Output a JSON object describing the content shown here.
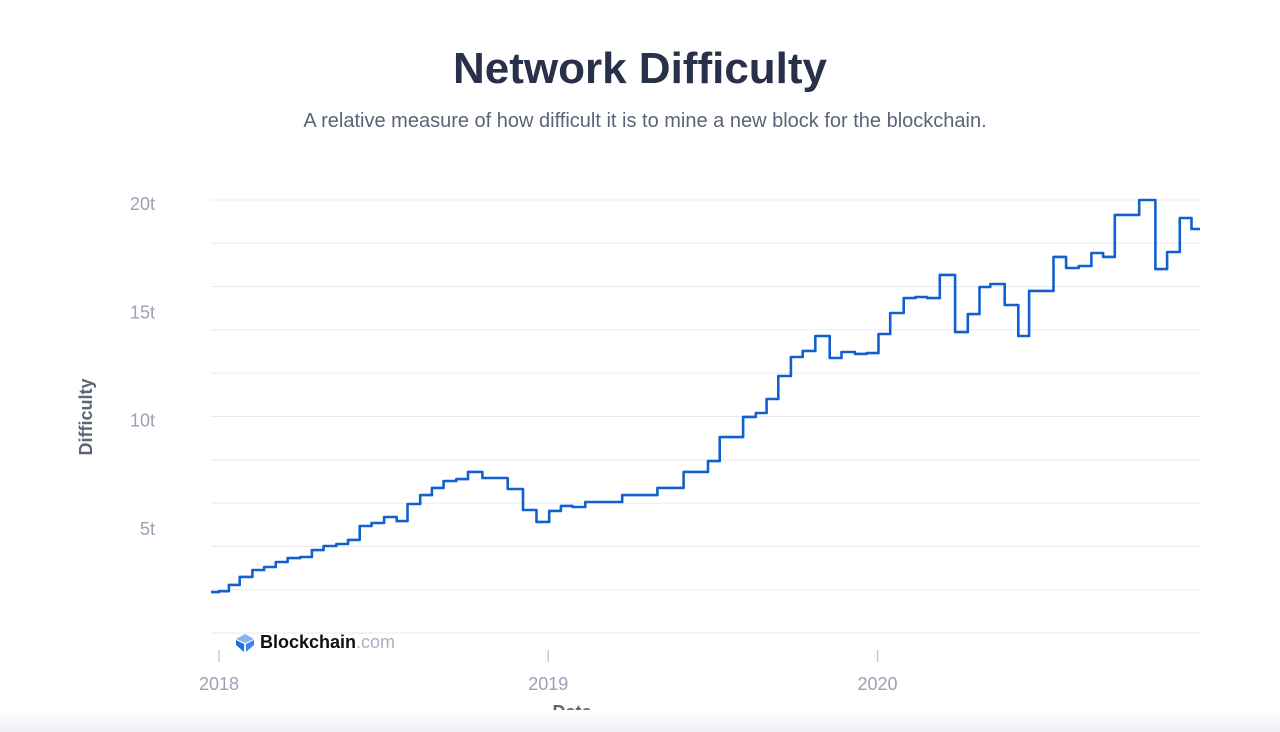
{
  "header": {
    "title": "Network Difficulty",
    "subtitle": "A relative measure of how difficult it is to mine a new block for the blockchain."
  },
  "branding": {
    "name": "Blockchain",
    "suffix": ".com",
    "icon": "blockchain-cube-icon"
  },
  "chart_data": {
    "type": "line",
    "step": true,
    "title": "Network Difficulty",
    "xlabel": "Date",
    "ylabel": "Difficulty",
    "ylim": [
      0,
      20
    ],
    "y_gridlines_every": 2,
    "grid": true,
    "y_ticks": [
      {
        "value": 5,
        "label": "5t"
      },
      {
        "value": 10,
        "label": "10t"
      },
      {
        "value": 15,
        "label": "15t"
      },
      {
        "value": 20,
        "label": "20t"
      }
    ],
    "x_ticks": [
      {
        "date": "2018-01-01",
        "label": "2018"
      },
      {
        "date": "2019-01-01",
        "label": "2019"
      },
      {
        "date": "2020-01-01",
        "label": "2020"
      }
    ],
    "unit": "t (trillion)",
    "line_color": "#1160d0",
    "x": [
      "2017-12-23",
      "2018-01-01",
      "2018-01-12",
      "2018-01-24",
      "2018-02-07",
      "2018-02-20",
      "2018-03-05",
      "2018-03-18",
      "2018-04-01",
      "2018-04-14",
      "2018-04-27",
      "2018-05-11",
      "2018-05-24",
      "2018-06-06",
      "2018-06-19",
      "2018-07-03",
      "2018-07-17",
      "2018-07-29",
      "2018-08-12",
      "2018-08-25",
      "2018-09-07",
      "2018-09-21",
      "2018-10-04",
      "2018-10-20",
      "2018-11-17",
      "2018-12-04",
      "2018-12-19",
      "2019-01-02",
      "2019-01-15",
      "2019-01-28",
      "2019-02-11",
      "2019-03-24",
      "2019-05-02",
      "2019-05-31",
      "2019-06-27",
      "2019-07-10",
      "2019-08-05",
      "2019-08-19",
      "2019-08-31",
      "2019-09-13",
      "2019-09-27",
      "2019-10-10",
      "2019-10-24",
      "2019-11-09",
      "2019-11-22",
      "2019-12-07",
      "2019-12-20",
      "2020-01-02",
      "2020-01-15",
      "2020-01-30",
      "2020-02-12",
      "2020-02-25",
      "2020-03-10",
      "2020-03-27",
      "2020-04-10",
      "2020-04-23",
      "2020-05-05",
      "2020-05-21",
      "2020-06-05",
      "2020-06-17",
      "2020-07-14",
      "2020-07-28",
      "2020-08-11",
      "2020-08-25",
      "2020-09-07",
      "2020-09-20",
      "2020-10-17",
      "2020-11-04",
      "2020-11-17",
      "2020-12-01",
      "2020-12-14",
      "2020-12-22"
    ],
    "y": [
      1.89,
      1.93,
      2.22,
      2.59,
      2.91,
      3.05,
      3.28,
      3.46,
      3.51,
      3.83,
      4.02,
      4.11,
      4.3,
      4.94,
      5.08,
      5.36,
      5.17,
      5.96,
      6.37,
      6.7,
      7.02,
      7.11,
      7.44,
      7.16,
      6.65,
      5.68,
      5.13,
      5.64,
      5.87,
      5.82,
      6.05,
      6.37,
      6.7,
      7.44,
      7.94,
      9.05,
      9.98,
      10.16,
      10.81,
      11.87,
      12.75,
      13.03,
      13.72,
      12.7,
      12.98,
      12.89,
      12.93,
      13.81,
      14.78,
      15.47,
      15.52,
      15.47,
      16.54,
      13.9,
      14.73,
      15.98,
      16.12,
      15.15,
      13.72,
      15.8,
      17.37,
      16.86,
      16.95,
      17.55,
      17.37,
      19.31,
      20.0,
      16.81,
      17.6,
      19.17,
      18.66,
      18.66
    ]
  }
}
